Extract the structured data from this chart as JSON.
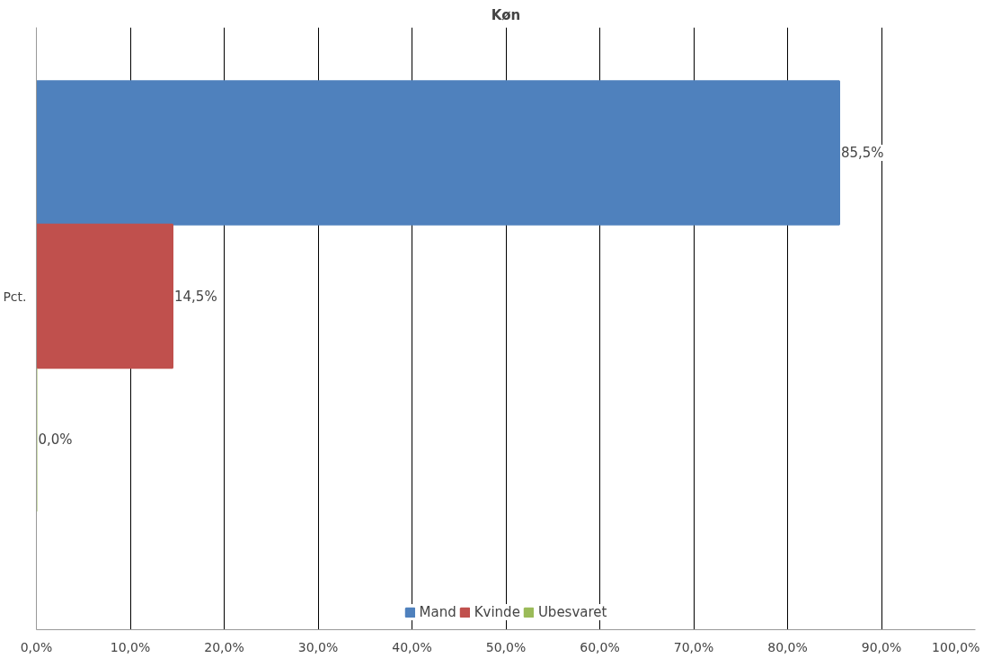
{
  "chart_data": {
    "type": "bar",
    "orientation": "horizontal",
    "title": "Køn",
    "categories": [
      "Pct."
    ],
    "series": [
      {
        "name": "Mand",
        "color": "#4f81bd",
        "values": [
          85.5
        ],
        "value_labels": [
          "85,5%"
        ]
      },
      {
        "name": "Kvinde",
        "color": "#c0504d",
        "values": [
          14.5
        ],
        "value_labels": [
          "14,5%"
        ]
      },
      {
        "name": "Ubesvaret",
        "color": "#9bbb59",
        "values": [
          0.0
        ],
        "value_labels": [
          "0,0%"
        ]
      }
    ],
    "xlim": [
      0,
      100
    ],
    "xticks": [
      {
        "value": 0,
        "label": "0,0%"
      },
      {
        "value": 10,
        "label": "10,0%"
      },
      {
        "value": 20,
        "label": "20,0%"
      },
      {
        "value": 30,
        "label": "30,0%"
      },
      {
        "value": 40,
        "label": "40,0%"
      },
      {
        "value": 50,
        "label": "50,0%"
      },
      {
        "value": 60,
        "label": "60,0%"
      },
      {
        "value": 70,
        "label": "70,0%"
      },
      {
        "value": 80,
        "label": "80,0%"
      },
      {
        "value": 90,
        "label": "90,0%"
      },
      {
        "value": 100,
        "label": "100,0%"
      }
    ],
    "grid": "x",
    "legend": "bottom"
  }
}
